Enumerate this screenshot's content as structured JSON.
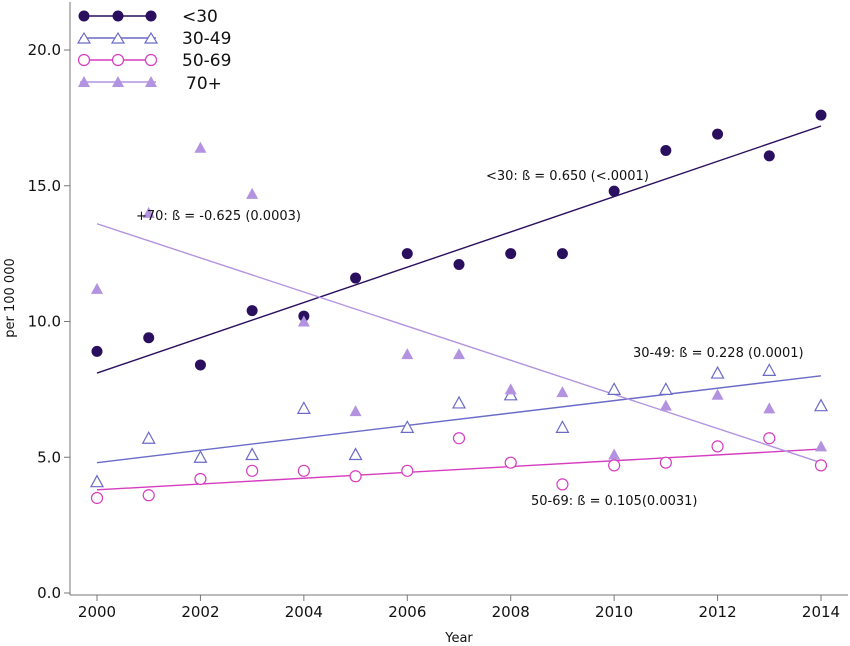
{
  "chart_data": {
    "type": "scatter",
    "xlabel": "Year",
    "ylabel": "per 100 000",
    "xlim": [
      1999.5,
      2014.5
    ],
    "ylim": [
      0,
      21
    ],
    "x_ticks": [
      2000,
      2002,
      2004,
      2006,
      2008,
      2010,
      2012,
      2014
    ],
    "x_tick_labels": [
      "2000",
      "2002",
      "2004",
      "2006",
      "2008",
      "2010",
      "2012",
      "2014"
    ],
    "y_ticks": [
      0,
      5,
      10,
      15,
      20
    ],
    "y_tick_labels": [
      "0.0",
      "5.0",
      "10.0",
      "15.0",
      "20.0"
    ],
    "grid": false,
    "legend_position": "top-left",
    "x": [
      2000,
      2001,
      2002,
      2003,
      2004,
      2005,
      2006,
      2007,
      2008,
      2009,
      2010,
      2011,
      2012,
      2013,
      2014
    ],
    "series": [
      {
        "name": "<30",
        "marker": "filled-circle",
        "color": "#2a0f5e",
        "values": [
          8.9,
          9.4,
          8.4,
          10.4,
          10.2,
          11.6,
          12.5,
          12.1,
          12.5,
          12.5,
          14.8,
          16.3,
          16.9,
          16.1,
          17.6
        ],
        "trend": [
          8.1,
          17.2
        ],
        "annotation": "<30: ß = 0.650 (<.0001)"
      },
      {
        "name": "30-49",
        "marker": "open-triangle",
        "color": "#6a6ac8",
        "values": [
          4.1,
          5.7,
          5.0,
          5.1,
          6.8,
          5.1,
          6.1,
          7.0,
          7.3,
          6.1,
          7.5,
          7.5,
          8.1,
          8.2,
          6.9
        ],
        "trend": [
          4.8,
          8.0
        ],
        "annotation": "30-49: ß = 0.228 (0.0001)"
      },
      {
        "name": "50-69",
        "marker": "open-circle",
        "color": "#d63cc0",
        "values": [
          3.5,
          3.6,
          4.2,
          4.5,
          4.5,
          4.3,
          4.5,
          5.7,
          4.8,
          4.0,
          4.7,
          4.8,
          5.4,
          5.7,
          4.7
        ],
        "trend": [
          3.8,
          5.3
        ],
        "annotation": "50-69: ß = 0.105(0.0031)"
      },
      {
        "name": "70+",
        "marker": "filled-triangle",
        "color": "#b393e0",
        "values": [
          11.2,
          14.0,
          16.4,
          14.7,
          10.0,
          6.7,
          8.8,
          8.8,
          7.5,
          7.4,
          5.1,
          6.9,
          7.3,
          6.8,
          5.4
        ],
        "trend": [
          13.6,
          4.8
        ],
        "annotation": "+70: ß = -0.625 (0.0003)"
      }
    ]
  }
}
